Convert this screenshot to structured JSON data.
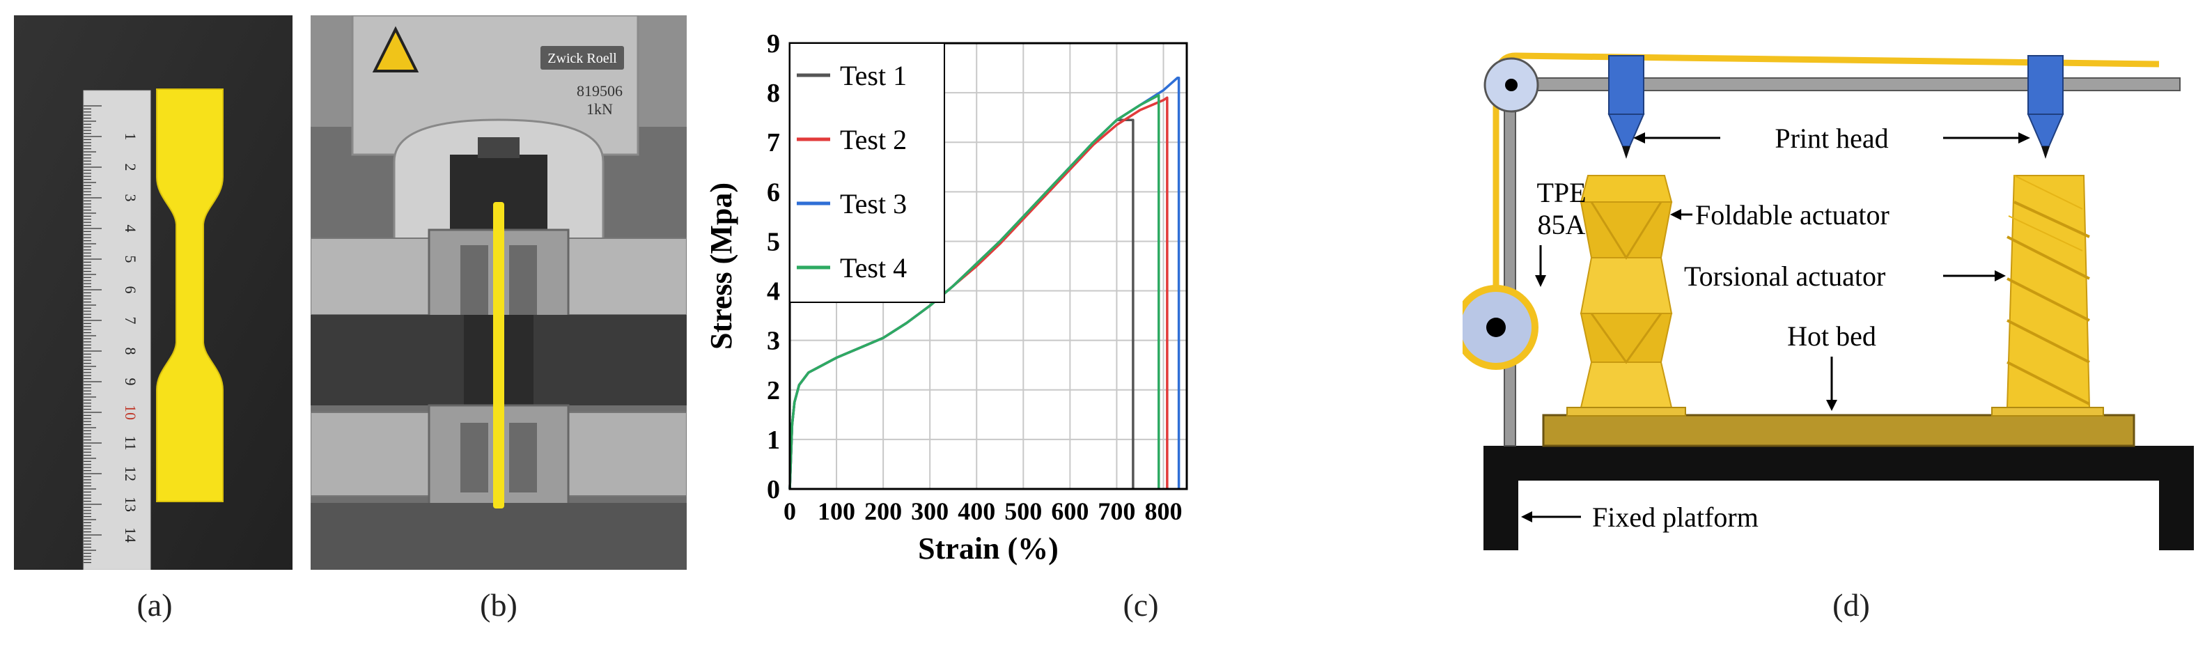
{
  "captions": {
    "a": "(a)",
    "b": "(b)",
    "c": "(c)",
    "d": "(d)"
  },
  "photo_a": {
    "ruler_numbers": [
      "1",
      "2",
      "3",
      "4",
      "5",
      "6",
      "7",
      "8",
      "9",
      "10",
      "11",
      "12",
      "13",
      "14"
    ],
    "highlight_number": "10",
    "colors": {
      "background": "#2b2b2b",
      "ruler": "#d9d9d9",
      "specimen": "#f7e11a",
      "highlight": "#c0392b"
    }
  },
  "photo_b": {
    "brand": "Zwick Roell",
    "plate_line1": "819506",
    "plate_line2": "1kN",
    "colors": {
      "frame": "#9a9a9a",
      "steel": "#c8c8c8",
      "dark": "#3a3a3a",
      "specimen": "#f7e11a",
      "warning": "#f0c419"
    }
  },
  "chart_data": {
    "type": "line",
    "xlabel": "Strain (%)",
    "ylabel": "Stress (Mpa)",
    "xlim": [
      0,
      850
    ],
    "ylim": [
      0,
      9
    ],
    "xticks": [
      0,
      100,
      200,
      300,
      400,
      500,
      600,
      700,
      800
    ],
    "yticks": [
      0,
      1,
      2,
      3,
      4,
      5,
      6,
      7,
      8,
      9
    ],
    "grid": true,
    "legend_position": "top-left",
    "series": [
      {
        "name": "Test 1",
        "color": "#555555",
        "x": [
          0,
          5,
          10,
          20,
          40,
          60,
          100,
          150,
          200,
          250,
          300,
          350,
          400,
          450,
          500,
          550,
          600,
          650,
          700,
          735,
          735
        ],
        "y": [
          0,
          1.3,
          1.75,
          2.1,
          2.35,
          2.45,
          2.65,
          2.85,
          3.05,
          3.35,
          3.7,
          4.1,
          4.55,
          5.0,
          5.5,
          6.0,
          6.5,
          7.0,
          7.45,
          7.45,
          0
        ]
      },
      {
        "name": "Test 2",
        "color": "#e23b3b",
        "x": [
          0,
          5,
          10,
          20,
          40,
          60,
          100,
          150,
          200,
          250,
          300,
          350,
          400,
          450,
          500,
          550,
          600,
          650,
          700,
          750,
          800,
          808,
          808
        ],
        "y": [
          0,
          1.3,
          1.75,
          2.1,
          2.35,
          2.45,
          2.65,
          2.85,
          3.05,
          3.35,
          3.7,
          4.1,
          4.5,
          4.95,
          5.45,
          5.95,
          6.45,
          6.95,
          7.35,
          7.65,
          7.85,
          7.9,
          0
        ]
      },
      {
        "name": "Test 3",
        "color": "#2f6fd6",
        "x": [
          0,
          5,
          10,
          20,
          40,
          60,
          100,
          150,
          200,
          250,
          300,
          350,
          400,
          450,
          500,
          550,
          600,
          650,
          700,
          750,
          800,
          830,
          833,
          833
        ],
        "y": [
          0,
          1.3,
          1.75,
          2.1,
          2.35,
          2.45,
          2.65,
          2.85,
          3.05,
          3.35,
          3.7,
          4.1,
          4.55,
          5.0,
          5.5,
          6.0,
          6.5,
          7.0,
          7.45,
          7.75,
          8.05,
          8.3,
          8.3,
          0
        ]
      },
      {
        "name": "Test 4",
        "color": "#2eaa62",
        "x": [
          0,
          5,
          10,
          20,
          40,
          60,
          100,
          150,
          200,
          250,
          300,
          350,
          400,
          450,
          500,
          550,
          600,
          650,
          700,
          750,
          790,
          790
        ],
        "y": [
          0,
          1.3,
          1.75,
          2.1,
          2.35,
          2.45,
          2.65,
          2.85,
          3.05,
          3.35,
          3.7,
          4.1,
          4.55,
          5.0,
          5.5,
          6.0,
          6.5,
          7.0,
          7.45,
          7.75,
          7.95,
          0
        ]
      }
    ]
  },
  "diagram_d": {
    "labels": {
      "print_head": "Print head",
      "tpe_line1": "TPE",
      "tpe_line2": "85A",
      "foldable": "Foldable actuator",
      "torsional": "Torsional actuator",
      "hot_bed": "Hot bed",
      "fixed_platform": "Fixed platform"
    },
    "colors": {
      "filament": "#f3c11e",
      "head": "#3d6fcf",
      "actuator": "#f2c72a",
      "actuator_dark": "#c99a10",
      "bed": "#b8962a",
      "platform": "#111111",
      "rail": "#8a8a8a",
      "spool": "#b9c7e6"
    }
  }
}
